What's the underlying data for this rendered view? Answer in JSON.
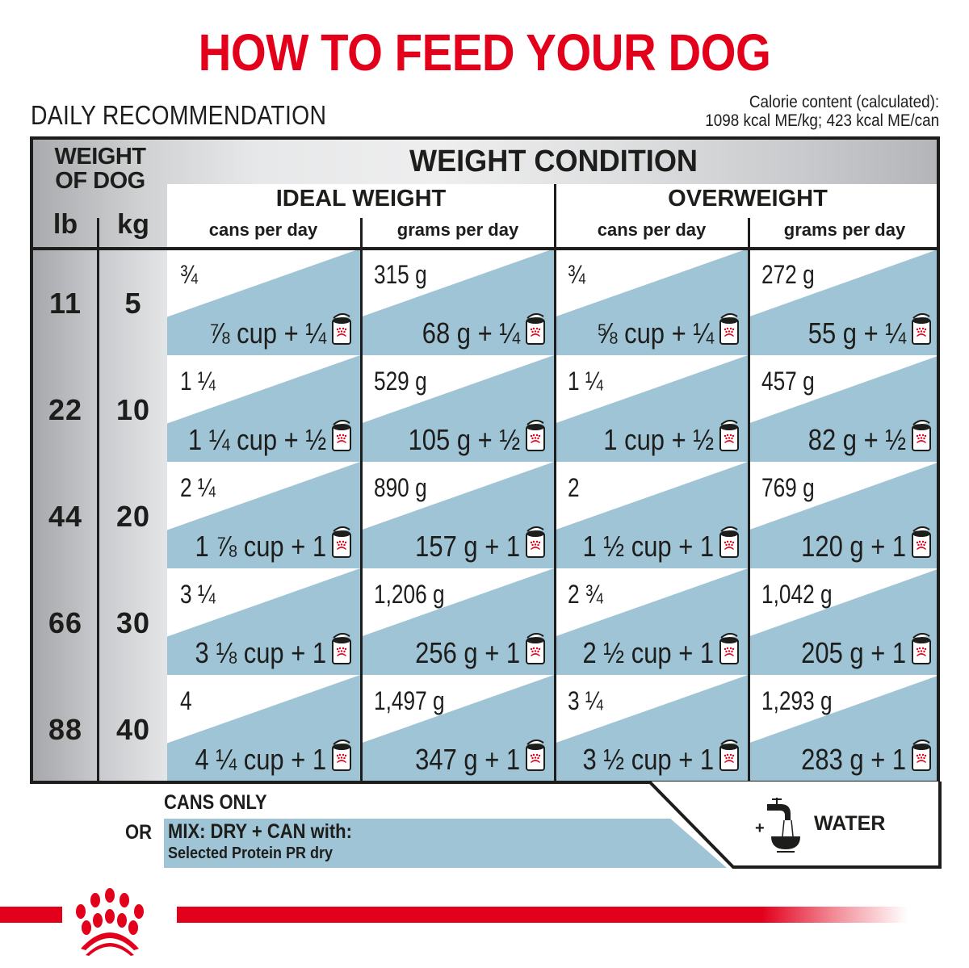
{
  "header": {
    "title": "HOW TO FEED YOUR DOG",
    "subtitle": "DAILY RECOMMENDATION",
    "calorie_line1": "Calorie content (calculated):",
    "calorie_line2": "1098 kcal ME/kg; 423 kcal ME/can"
  },
  "colors": {
    "brand_red": "#e2001a",
    "accent_blue": "#9fc4d6",
    "text": "#1d1d1b"
  },
  "table": {
    "weight_header": "WEIGHT OF DOG",
    "weight_header_line1": "WEIGHT",
    "weight_header_line2": "OF DOG",
    "unit_lb": "lb",
    "unit_kg": "kg",
    "condition_header": "WEIGHT CONDITION",
    "conditions": [
      {
        "label": "IDEAL WEIGHT",
        "columns": [
          "cans per day",
          "grams per day"
        ]
      },
      {
        "label": "OVERWEIGHT",
        "columns": [
          "cans per day",
          "grams per day"
        ]
      }
    ],
    "rows": [
      {
        "lb": "11",
        "kg": "5",
        "cells": [
          {
            "top": "¾",
            "bottom": "⅞ cup + ¼"
          },
          {
            "top": "315 g",
            "bottom": "68 g + ¼"
          },
          {
            "top": "¾",
            "bottom": "⅝ cup + ¼"
          },
          {
            "top": "272 g",
            "bottom": "55 g + ¼"
          }
        ]
      },
      {
        "lb": "22",
        "kg": "10",
        "cells": [
          {
            "top": "1 ¼",
            "bottom": "1 ¼ cup + ½"
          },
          {
            "top": "529 g",
            "bottom": "105 g + ½"
          },
          {
            "top": "1 ¼",
            "bottom": "1 cup + ½"
          },
          {
            "top": "457 g",
            "bottom": "82 g + ½"
          }
        ]
      },
      {
        "lb": "44",
        "kg": "20",
        "cells": [
          {
            "top": "2 ¼",
            "bottom": "1 ⅞ cup + 1"
          },
          {
            "top": "890 g",
            "bottom": "157 g + 1"
          },
          {
            "top": "2",
            "bottom": "1 ½ cup + 1"
          },
          {
            "top": "769 g",
            "bottom": "120 g + 1"
          }
        ]
      },
      {
        "lb": "66",
        "kg": "30",
        "cells": [
          {
            "top": "3 ¼",
            "bottom": "3 ⅛ cup + 1"
          },
          {
            "top": "1,206 g",
            "bottom": "256 g + 1"
          },
          {
            "top": "2 ¾",
            "bottom": "2 ½ cup + 1"
          },
          {
            "top": "1,042 g",
            "bottom": "205 g + 1"
          }
        ]
      },
      {
        "lb": "88",
        "kg": "40",
        "cells": [
          {
            "top": "4",
            "bottom": "4 ¼ cup + 1"
          },
          {
            "top": "1,497 g",
            "bottom": "347 g + 1"
          },
          {
            "top": "3 ¼",
            "bottom": "3 ½ cup + 1"
          },
          {
            "top": "1,293 g",
            "bottom": "283 g + 1"
          }
        ]
      }
    ],
    "cell_icon": "royal-canin-can-icon"
  },
  "footer": {
    "cans_only": "CANS ONLY",
    "or": "OR",
    "mix_line1": "MIX: DRY + CAN with:",
    "mix_line2": "Selected Protein PR dry",
    "water_plus": "+",
    "water_icon": "tap-and-bowl-icon",
    "water_label": "WATER",
    "logo": "royal-canin-crown-logo"
  }
}
